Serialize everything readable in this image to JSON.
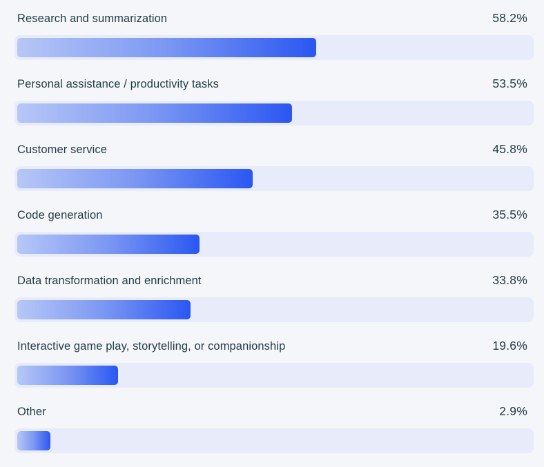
{
  "chart_data": {
    "type": "bar",
    "orientation": "horizontal",
    "grid": false,
    "legend": "none",
    "xlim": [
      0,
      100
    ],
    "unit": "percent",
    "categories": [
      "Research and summarization",
      "Personal assistance / productivity tasks",
      "Customer service",
      "Code generation",
      "Data transformation and enrichment",
      "Interactive game play, storytelling, or companionship",
      "Other"
    ],
    "values": [
      58.2,
      53.5,
      45.8,
      35.5,
      33.8,
      19.6,
      2.9
    ],
    "value_labels": [
      "58.2%",
      "53.5%",
      "45.8%",
      "35.5%",
      "33.8%",
      "19.6%",
      "2.9%"
    ],
    "colors": {
      "background": "#f5f6fa",
      "track": "#e7ebfa",
      "bar_gradient_start": "#b7c7f6",
      "bar_gradient_end": "#2a57f1",
      "label_text": "#1f3b45",
      "value_text": "#1f3b45"
    }
  }
}
